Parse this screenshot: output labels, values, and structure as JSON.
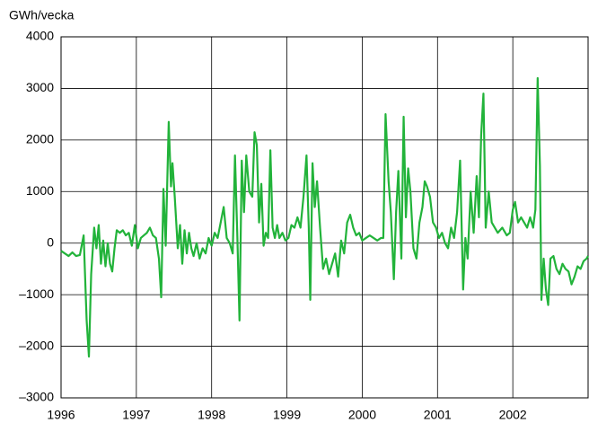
{
  "chart_data": {
    "type": "line",
    "title": "GWh/vecka",
    "x": [
      1996.0,
      1996.05,
      1996.1,
      1996.15,
      1996.2,
      1996.25,
      1996.3,
      1996.34,
      1996.37,
      1996.4,
      1996.44,
      1996.47,
      1996.5,
      1996.53,
      1996.56,
      1996.59,
      1996.62,
      1996.65,
      1996.68,
      1996.71,
      1996.74,
      1996.78,
      1996.82,
      1996.86,
      1996.9,
      1996.94,
      1996.98,
      1997.02,
      1997.06,
      1997.1,
      1997.14,
      1997.18,
      1997.22,
      1997.26,
      1997.3,
      1997.33,
      1997.36,
      1997.39,
      1997.43,
      1997.46,
      1997.48,
      1997.51,
      1997.55,
      1997.58,
      1997.61,
      1997.64,
      1997.67,
      1997.7,
      1997.73,
      1997.76,
      1997.8,
      1997.84,
      1997.88,
      1997.92,
      1997.96,
      1998.0,
      1998.04,
      1998.08,
      1998.12,
      1998.16,
      1998.2,
      1998.24,
      1998.28,
      1998.31,
      1998.34,
      1998.37,
      1998.4,
      1998.43,
      1998.46,
      1998.5,
      1998.54,
      1998.57,
      1998.6,
      1998.63,
      1998.66,
      1998.69,
      1998.72,
      1998.75,
      1998.78,
      1998.81,
      1998.84,
      1998.87,
      1998.9,
      1998.94,
      1998.98,
      1999.02,
      1999.06,
      1999.1,
      1999.14,
      1999.18,
      1999.22,
      1999.26,
      1999.29,
      1999.31,
      1999.34,
      1999.37,
      1999.4,
      1999.44,
      1999.48,
      1999.52,
      1999.56,
      1999.6,
      1999.64,
      1999.68,
      1999.72,
      1999.76,
      1999.8,
      1999.84,
      1999.88,
      1999.92,
      1999.96,
      2000.0,
      2000.05,
      2000.1,
      2000.15,
      2000.2,
      2000.25,
      2000.28,
      2000.31,
      2000.35,
      2000.38,
      2000.42,
      2000.45,
      2000.48,
      2000.52,
      2000.55,
      2000.58,
      2000.61,
      2000.64,
      2000.68,
      2000.72,
      2000.76,
      2000.8,
      2000.83,
      2000.86,
      2000.9,
      2000.94,
      2000.98,
      2001.02,
      2001.06,
      2001.1,
      2001.14,
      2001.18,
      2001.22,
      2001.26,
      2001.3,
      2001.34,
      2001.37,
      2001.4,
      2001.44,
      2001.48,
      2001.52,
      2001.55,
      2001.58,
      2001.61,
      2001.64,
      2001.68,
      2001.72,
      2001.76,
      2001.8,
      2001.86,
      2001.92,
      2001.96,
      2002.0,
      2002.03,
      2002.07,
      2002.11,
      2002.15,
      2002.19,
      2002.23,
      2002.27,
      2002.3,
      2002.33,
      2002.36,
      2002.38,
      2002.41,
      2002.44,
      2002.47,
      2002.5,
      2002.54,
      2002.58,
      2002.62,
      2002.66,
      2002.7,
      2002.74,
      2002.78,
      2002.82,
      2002.86,
      2002.9,
      2002.94,
      2002.98,
      2003.0
    ],
    "values": [
      -150,
      -200,
      -250,
      -180,
      -250,
      -230,
      150,
      -1500,
      -2200,
      -600,
      300,
      -100,
      350,
      -400,
      50,
      -450,
      0,
      -400,
      -550,
      -100,
      250,
      200,
      250,
      150,
      200,
      -50,
      350,
      -100,
      100,
      150,
      200,
      300,
      150,
      100,
      -300,
      -1050,
      1050,
      -50,
      2350,
      1100,
      1550,
      900,
      -100,
      350,
      -400,
      250,
      -200,
      200,
      -100,
      -250,
      0,
      -300,
      -100,
      -200,
      100,
      -50,
      200,
      100,
      400,
      700,
      100,
      0,
      -200,
      1700,
      200,
      -1500,
      1600,
      600,
      1700,
      1000,
      900,
      2150,
      1900,
      400,
      1150,
      -50,
      200,
      100,
      1800,
      300,
      100,
      350,
      100,
      200,
      50,
      100,
      350,
      300,
      500,
      300,
      900,
      1700,
      300,
      -1100,
      1550,
      700,
      1200,
      300,
      -500,
      -300,
      -600,
      -400,
      -200,
      -650,
      50,
      -200,
      400,
      550,
      300,
      150,
      200,
      50,
      100,
      150,
      100,
      50,
      100,
      100,
      2500,
      1200,
      600,
      -700,
      600,
      1400,
      -300,
      2450,
      500,
      1450,
      1000,
      -100,
      -300,
      400,
      700,
      1200,
      1100,
      900,
      400,
      300,
      100,
      200,
      0,
      -100,
      300,
      100,
      600,
      1600,
      -900,
      100,
      -300,
      1000,
      200,
      1300,
      500,
      2100,
      2900,
      300,
      1000,
      400,
      300,
      200,
      300,
      150,
      200,
      650,
      800,
      400,
      500,
      400,
      300,
      500,
      300,
      650,
      3200,
      1500,
      -1100,
      -300,
      -900,
      -1200,
      -300,
      -250,
      -500,
      -600,
      -400,
      -500,
      -550,
      -800,
      -650,
      -450,
      -500,
      -350,
      -300,
      -250
    ],
    "color": "#22b33a",
    "xlim": [
      1996,
      2003
    ],
    "xticks": [
      1996,
      1997,
      1998,
      1999,
      2000,
      2001,
      2002
    ],
    "ylim": [
      -3000,
      4000
    ],
    "yticks": [
      {
        "value": -3000,
        "label": "–3000"
      },
      {
        "value": -2000,
        "label": "–2000"
      },
      {
        "value": -1000,
        "label": "–1000"
      },
      0,
      1000,
      2000,
      3000,
      4000
    ],
    "grid": true
  }
}
